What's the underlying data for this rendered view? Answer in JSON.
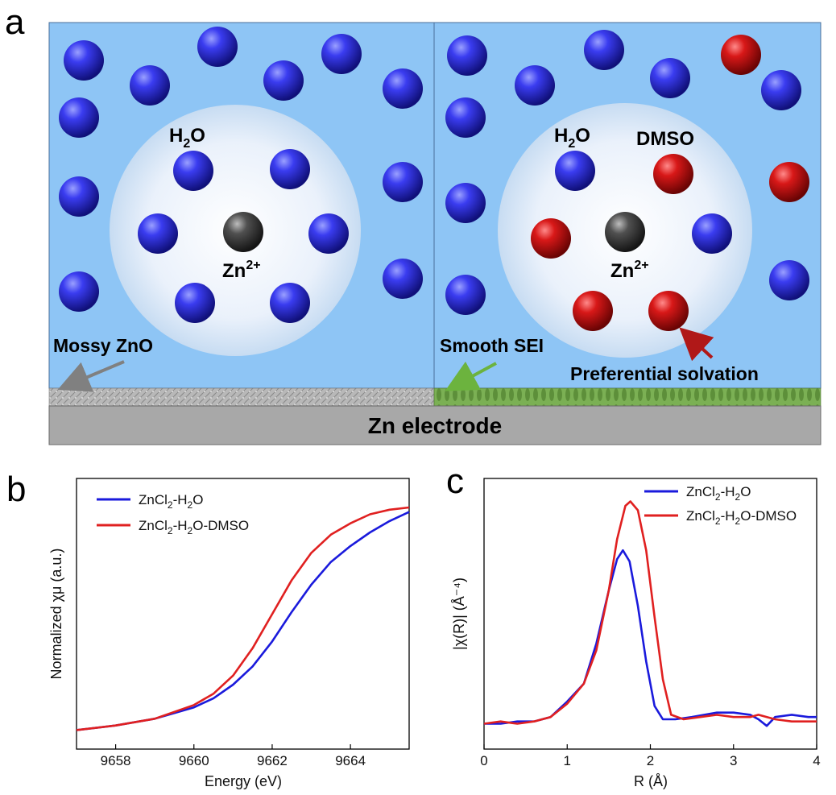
{
  "panel_labels": {
    "a": "a",
    "b": "b",
    "c": "c"
  },
  "schematic": {
    "left": {
      "h2o_label": "H",
      "h2o_sub": "2",
      "h2o_tail": "O",
      "ion_label": "Zn",
      "ion_sup": "2+",
      "deposit_label": "Mossy ZnO"
    },
    "right": {
      "h2o_label": "H",
      "h2o_sub": "2",
      "h2o_tail": "O",
      "dmso_label": "DMSO",
      "ion_label": "Zn",
      "ion_sup": "2+",
      "sei_label": "Smooth SEI",
      "solvation_label": "Preferential solvation"
    },
    "electrode_label": "Zn electrode",
    "colors": {
      "electrolyte": "#8ec5f5",
      "water_sphere": "#2e2fd8",
      "dmso_sphere": "#c81010",
      "zn_sphere": "#3a3a3a",
      "electrode": "#a8a8a8",
      "zno_layer": "#b5b5b5",
      "sei_layer": "#78a850",
      "arrow_grey": "#808080",
      "arrow_green": "#6cb33e",
      "arrow_red": "#b01818"
    }
  },
  "chart_data": [
    {
      "type": "line",
      "panel": "b",
      "xlabel": "Energy (eV)",
      "ylabel": "Normalized χμ (a.u.)",
      "xlim": [
        9657,
        9665.5
      ],
      "ylim": [
        0,
        1
      ],
      "x_ticks": [
        9658,
        9660,
        9662,
        9664
      ],
      "y_ticks": [],
      "legend_position": "top-left",
      "series": [
        {
          "name": "ZnCl2-H2O",
          "legend_main": "ZnCl",
          "legend_sub": "2",
          "legend_rest": "-H",
          "legend_sub2": "2",
          "legend_tail": "O",
          "color": "#1a1adc",
          "x": [
            9657,
            9658,
            9659,
            9660,
            9660.5,
            9661,
            9661.5,
            9662,
            9662.5,
            9663,
            9663.5,
            9664,
            9664.5,
            9665,
            9665.5
          ],
          "y": [
            0.02,
            0.04,
            0.07,
            0.12,
            0.16,
            0.22,
            0.3,
            0.41,
            0.54,
            0.66,
            0.76,
            0.83,
            0.89,
            0.94,
            0.98
          ]
        },
        {
          "name": "ZnCl2-H2O-DMSO",
          "legend_main": "ZnCl",
          "legend_sub": "2",
          "legend_rest": "-H",
          "legend_sub2": "2",
          "legend_tail": "O-DMSO",
          "color": "#e02020",
          "x": [
            9657,
            9658,
            9659,
            9660,
            9660.5,
            9661,
            9661.5,
            9662,
            9662.5,
            9663,
            9663.5,
            9664,
            9664.5,
            9665,
            9665.5
          ],
          "y": [
            0.02,
            0.04,
            0.07,
            0.13,
            0.18,
            0.26,
            0.38,
            0.53,
            0.68,
            0.8,
            0.88,
            0.93,
            0.97,
            0.99,
            1.0
          ]
        }
      ]
    },
    {
      "type": "line",
      "panel": "c",
      "xlabel": "R (Å)",
      "ylabel": "|χ(R)| (Å⁻⁴)",
      "xlim": [
        0,
        4
      ],
      "ylim": [
        0,
        1
      ],
      "x_ticks": [
        0,
        1,
        2,
        3,
        4
      ],
      "y_ticks": [],
      "legend_position": "top-right",
      "series": [
        {
          "name": "ZnCl2-H2O",
          "legend_main": "ZnCl",
          "legend_sub": "2",
          "legend_rest": "-H",
          "legend_sub2": "2",
          "legend_tail": "O",
          "color": "#1a1adc",
          "x": [
            0,
            0.2,
            0.4,
            0.6,
            0.8,
            1.0,
            1.2,
            1.35,
            1.5,
            1.6,
            1.67,
            1.75,
            1.85,
            1.95,
            2.05,
            2.15,
            2.3,
            2.5,
            2.8,
            3.0,
            3.2,
            3.3,
            3.4,
            3.5,
            3.7,
            3.9,
            4.0
          ],
          "y": [
            0.02,
            0.02,
            0.03,
            0.03,
            0.05,
            0.12,
            0.2,
            0.38,
            0.62,
            0.76,
            0.8,
            0.75,
            0.55,
            0.3,
            0.1,
            0.04,
            0.04,
            0.05,
            0.07,
            0.07,
            0.06,
            0.04,
            0.01,
            0.05,
            0.06,
            0.05,
            0.05
          ]
        },
        {
          "name": "ZnCl2-H2O-DMSO",
          "legend_main": "ZnCl",
          "legend_sub": "2",
          "legend_rest": "-H",
          "legend_sub2": "2",
          "legend_tail": "O-DMSO",
          "color": "#e02020",
          "x": [
            0,
            0.2,
            0.4,
            0.6,
            0.8,
            1.0,
            1.2,
            1.35,
            1.5,
            1.6,
            1.7,
            1.76,
            1.85,
            1.95,
            2.05,
            2.15,
            2.25,
            2.4,
            2.6,
            2.8,
            3.0,
            3.2,
            3.3,
            3.5,
            3.7,
            3.9,
            4.0
          ],
          "y": [
            0.02,
            0.03,
            0.02,
            0.03,
            0.05,
            0.11,
            0.2,
            0.35,
            0.62,
            0.85,
            1.0,
            1.02,
            0.98,
            0.8,
            0.5,
            0.22,
            0.06,
            0.04,
            0.05,
            0.06,
            0.05,
            0.05,
            0.06,
            0.04,
            0.03,
            0.03,
            0.03
          ]
        }
      ]
    }
  ]
}
